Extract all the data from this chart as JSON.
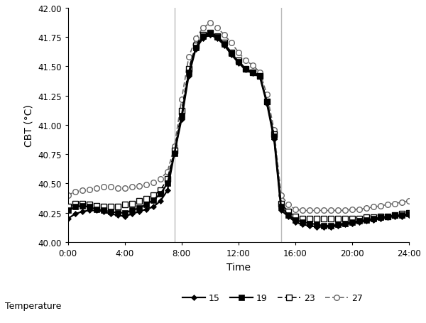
{
  "xlabel": "Time",
  "ylabel": "CBT (°C)",
  "ylim": [
    40.0,
    42.0
  ],
  "yticks": [
    40.0,
    40.25,
    40.5,
    40.75,
    41.0,
    41.25,
    41.5,
    41.75,
    42.0
  ],
  "xtick_labels": [
    "0:00",
    "4:00",
    "8:00",
    "12:00",
    "16:00",
    "20:00",
    "24:00"
  ],
  "xtick_positions": [
    0,
    4,
    8,
    12,
    16,
    20,
    24
  ],
  "vlines": [
    7.5,
    15.0
  ],
  "vline_color": "#bbbbbb",
  "legend_title": "Temperature",
  "series_labels": [
    "15",
    "19",
    "23",
    "27"
  ],
  "background_color": "#ffffff",
  "time": [
    0.0,
    0.5,
    1.0,
    1.5,
    2.0,
    2.5,
    3.0,
    3.5,
    4.0,
    4.5,
    5.0,
    5.5,
    6.0,
    6.5,
    7.0,
    7.5,
    8.0,
    8.5,
    9.0,
    9.5,
    10.0,
    10.5,
    11.0,
    11.5,
    12.0,
    12.5,
    13.0,
    13.5,
    14.0,
    14.5,
    15.0,
    15.5,
    16.0,
    16.5,
    17.0,
    17.5,
    18.0,
    18.5,
    19.0,
    19.5,
    20.0,
    20.5,
    21.0,
    21.5,
    22.0,
    22.5,
    23.0,
    23.5,
    24.0
  ],
  "s15": [
    40.2,
    40.24,
    40.26,
    40.27,
    40.27,
    40.26,
    40.24,
    40.23,
    40.22,
    40.24,
    40.26,
    40.28,
    40.3,
    40.35,
    40.44,
    40.76,
    41.05,
    41.42,
    41.65,
    41.74,
    41.77,
    41.74,
    41.68,
    41.6,
    41.53,
    41.47,
    41.44,
    41.41,
    41.18,
    40.88,
    40.27,
    40.22,
    40.17,
    40.15,
    40.14,
    40.13,
    40.13,
    40.13,
    40.14,
    40.15,
    40.16,
    40.17,
    40.18,
    40.19,
    40.2,
    40.21,
    40.22,
    40.22,
    40.23
  ],
  "s19": [
    40.27,
    40.3,
    40.31,
    40.3,
    40.28,
    40.27,
    40.26,
    40.25,
    40.25,
    40.27,
    40.29,
    40.32,
    40.36,
    40.41,
    40.5,
    40.76,
    41.08,
    41.45,
    41.66,
    41.76,
    41.78,
    41.75,
    41.69,
    41.61,
    41.54,
    41.48,
    41.45,
    41.42,
    41.2,
    40.9,
    40.3,
    40.23,
    40.19,
    40.17,
    40.16,
    40.15,
    40.14,
    40.14,
    40.15,
    40.16,
    40.17,
    40.18,
    40.19,
    40.2,
    40.21,
    40.22,
    40.23,
    40.23,
    40.24
  ],
  "s23": [
    40.3,
    40.33,
    40.33,
    40.32,
    40.31,
    40.3,
    40.3,
    40.3,
    40.32,
    40.33,
    40.35,
    40.37,
    40.4,
    40.44,
    40.54,
    40.78,
    41.12,
    41.48,
    41.68,
    41.77,
    41.79,
    41.76,
    41.7,
    41.62,
    41.55,
    41.48,
    41.45,
    41.42,
    41.2,
    40.92,
    40.33,
    40.26,
    40.22,
    40.2,
    40.2,
    40.2,
    40.2,
    40.2,
    40.2,
    40.2,
    40.2,
    40.2,
    40.21,
    40.21,
    40.22,
    40.22,
    40.23,
    40.24,
    40.25
  ],
  "s27": [
    40.4,
    40.43,
    40.44,
    40.45,
    40.46,
    40.47,
    40.47,
    40.46,
    40.46,
    40.47,
    40.48,
    40.49,
    40.51,
    40.54,
    40.6,
    40.82,
    41.22,
    41.58,
    41.74,
    41.83,
    41.87,
    41.83,
    41.77,
    41.7,
    41.62,
    41.55,
    41.51,
    41.45,
    41.26,
    40.96,
    40.4,
    40.32,
    40.28,
    40.27,
    40.27,
    40.27,
    40.27,
    40.27,
    40.27,
    40.27,
    40.28,
    40.28,
    40.29,
    40.3,
    40.31,
    40.32,
    40.33,
    40.34,
    40.35
  ]
}
